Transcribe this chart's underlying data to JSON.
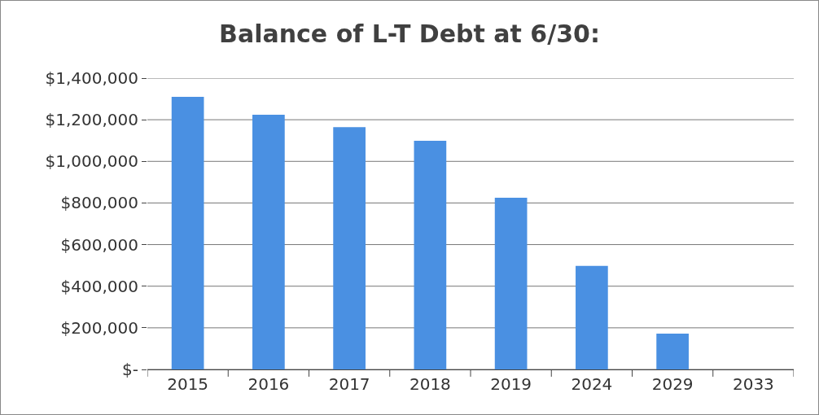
{
  "chart_data": {
    "type": "bar",
    "title": "Balance of L-T Debt at 6/30:",
    "categories": [
      "2015",
      "2016",
      "2017",
      "2018",
      "2019",
      "2024",
      "2029",
      "2033"
    ],
    "values": [
      1310000,
      1224000,
      1164000,
      1099000,
      825000,
      498000,
      172000,
      0
    ],
    "color": "#4a90e2",
    "ylim": [
      0,
      1400000
    ],
    "yticks": [
      {
        "value": 0,
        "label": "$-"
      },
      {
        "value": 200000,
        "label": "$200,000"
      },
      {
        "value": 400000,
        "label": "$400,000"
      },
      {
        "value": 600000,
        "label": "$600,000"
      },
      {
        "value": 800000,
        "label": "$800,000"
      },
      {
        "value": 1000000,
        "label": "$1,000,000"
      },
      {
        "value": 1200000,
        "label": "$1,200,000"
      },
      {
        "value": 1400000,
        "label": "$1,400,000"
      }
    ],
    "grid": "y"
  }
}
